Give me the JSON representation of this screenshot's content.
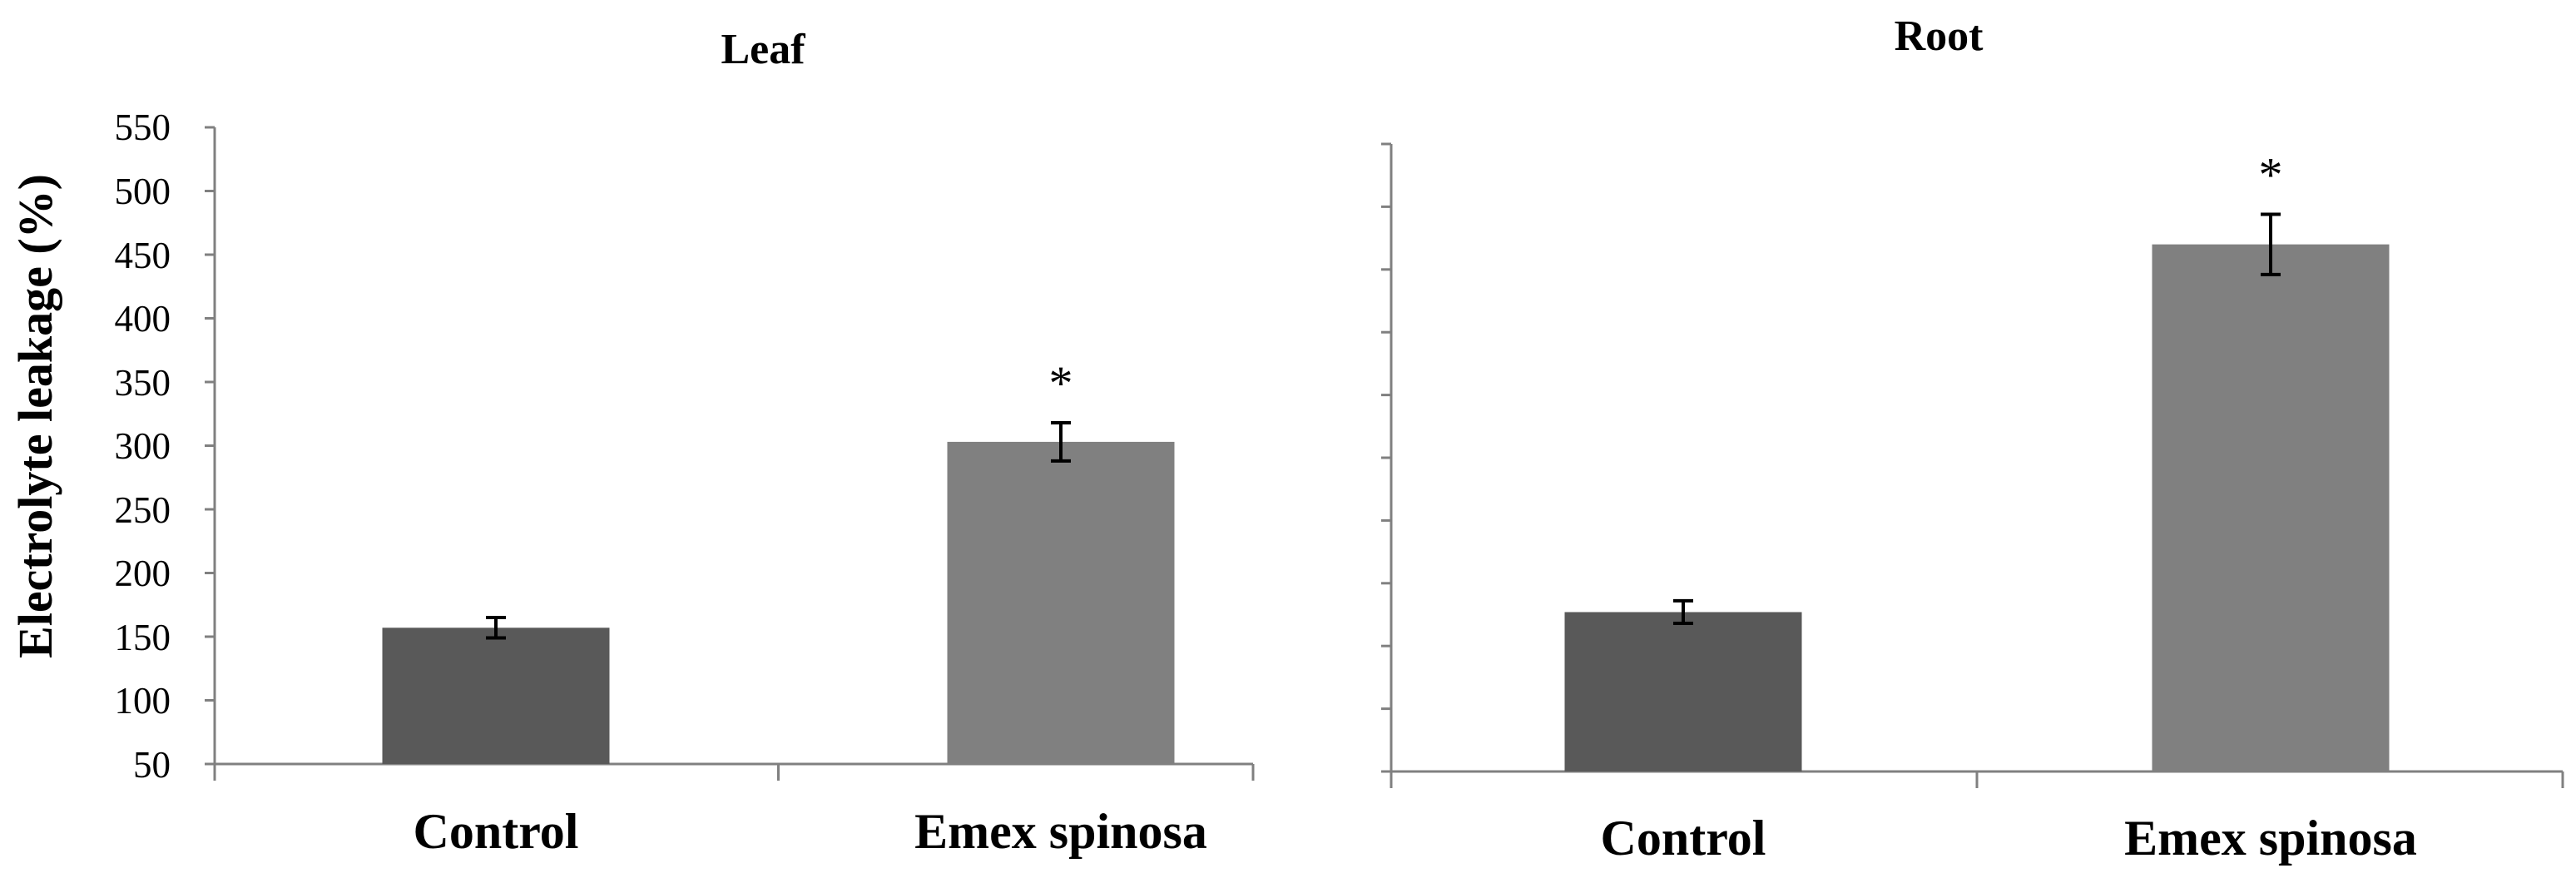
{
  "chart_data": [
    {
      "type": "bar",
      "title": "Leaf",
      "categories": [
        "Control",
        "Emex spinosa"
      ],
      "values": [
        157,
        303
      ],
      "errors": [
        8,
        15
      ],
      "annotations": [
        "",
        "*"
      ],
      "ylabel": "Electrolyte leakage (%)",
      "yticks": [
        "550",
        "500",
        "450",
        "400",
        "350",
        "300",
        "250",
        "200",
        "150",
        "100",
        "50"
      ],
      "ylim": [
        50,
        550
      ],
      "colors": [
        "#595959",
        "#808080"
      ]
    },
    {
      "type": "bar",
      "title": "Root",
      "categories": [
        "Control",
        "Emex spinosa"
      ],
      "values": [
        177,
        470
      ],
      "errors": [
        9,
        24
      ],
      "annotations": [
        "",
        "*"
      ],
      "ylabel": "",
      "yticks": [],
      "ylim": [
        50,
        550
      ],
      "colors": [
        "#595959",
        "#808080"
      ]
    }
  ]
}
